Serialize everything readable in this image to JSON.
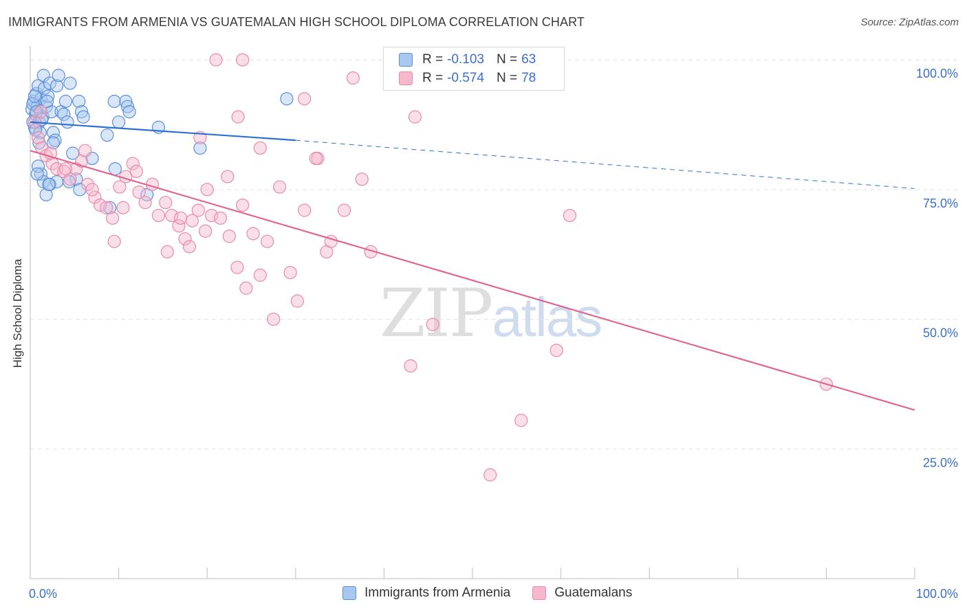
{
  "title": "IMMIGRANTS FROM ARMENIA VS GUATEMALAN HIGH SCHOOL DIPLOMA CORRELATION CHART",
  "source": "Source: ZipAtlas.com",
  "watermark": {
    "zip": "ZIP",
    "atlas": "atlas"
  },
  "legend": {
    "r_label": "R =",
    "n_label": "N =",
    "series": [
      {
        "r": "-0.103",
        "n": "63"
      },
      {
        "r": "-0.574",
        "n": "78"
      }
    ]
  },
  "colors": {
    "blue_fill": "#a9c8f0",
    "blue_stroke": "#5b8fd6",
    "blue_line": "#2f6fd0",
    "pink_fill": "#f6b8cb",
    "pink_stroke": "#e88aa8",
    "pink_line": "#e06690",
    "grid": "#e3e3e3",
    "tick_label": "#3a6fcc"
  },
  "chart_data": {
    "type": "scatter",
    "xlabel": "",
    "ylabel": "High School Diploma",
    "xlim": [
      0,
      100
    ],
    "ylim": [
      0,
      102
    ],
    "x_tick_labels": [
      "0.0%",
      "100.0%"
    ],
    "y_ticks": [
      25,
      50,
      75,
      100
    ],
    "y_tick_labels": [
      "25.0%",
      "50.0%",
      "75.0%",
      "100.0%"
    ],
    "series": [
      {
        "name": "Immigrants from Armenia",
        "trend": {
          "x0": 0,
          "y0": 88.0,
          "x1": 30,
          "y1": 84.5,
          "extend_to_x": 100,
          "extend_y": 75.2
        },
        "points": [
          [
            0.2,
            90.5
          ],
          [
            0.3,
            88.0
          ],
          [
            0.4,
            92.0
          ],
          [
            0.5,
            87.0
          ],
          [
            0.6,
            89.5
          ],
          [
            0.7,
            93.5
          ],
          [
            0.8,
            91.0
          ],
          [
            0.9,
            95.0
          ],
          [
            1.0,
            88.0
          ],
          [
            1.1,
            86.0
          ],
          [
            1.2,
            92.5
          ],
          [
            1.4,
            89.0
          ],
          [
            1.5,
            97.0
          ],
          [
            1.6,
            94.5
          ],
          [
            1.8,
            91.0
          ],
          [
            2.0,
            93.0
          ],
          [
            2.2,
            95.5
          ],
          [
            2.4,
            90.0
          ],
          [
            2.6,
            86.0
          ],
          [
            2.8,
            84.5
          ],
          [
            3.0,
            95.0
          ],
          [
            3.2,
            97.0
          ],
          [
            1.0,
            84.0
          ],
          [
            1.2,
            78.0
          ],
          [
            1.5,
            76.5
          ],
          [
            1.8,
            74.0
          ],
          [
            2.2,
            76.0
          ],
          [
            0.9,
            79.5
          ],
          [
            0.8,
            78.0
          ],
          [
            3.5,
            90.0
          ],
          [
            3.8,
            89.5
          ],
          [
            4.0,
            92.0
          ],
          [
            4.2,
            88.0
          ],
          [
            4.5,
            95.5
          ],
          [
            4.8,
            82.0
          ],
          [
            5.2,
            77.0
          ],
          [
            5.6,
            75.0
          ],
          [
            5.5,
            92.0
          ],
          [
            5.8,
            90.0
          ],
          [
            6.0,
            89.0
          ],
          [
            7.0,
            81.0
          ],
          [
            8.7,
            85.5
          ],
          [
            9.0,
            71.5
          ],
          [
            9.5,
            92.0
          ],
          [
            9.6,
            79.0
          ],
          [
            10.0,
            88.0
          ],
          [
            10.8,
            92.0
          ],
          [
            11.0,
            91.0
          ],
          [
            11.2,
            90.0
          ],
          [
            13.2,
            74.0
          ],
          [
            14.5,
            87.0
          ],
          [
            19.2,
            83.0
          ],
          [
            29.0,
            92.5
          ],
          [
            0.3,
            91.5
          ],
          [
            0.5,
            93.0
          ],
          [
            0.7,
            90.0
          ],
          [
            1.3,
            88.5
          ],
          [
            2.6,
            84.0
          ],
          [
            3.0,
            76.5
          ],
          [
            1.9,
            92.0
          ],
          [
            0.6,
            86.5
          ],
          [
            4.4,
            76.5
          ],
          [
            2.1,
            76.0
          ]
        ]
      },
      {
        "name": "Guatemalans",
        "trend": {
          "x0": 0,
          "y0": 82.5,
          "x1": 100,
          "y1": 32.5
        },
        "points": [
          [
            21.0,
            100.0
          ],
          [
            24.0,
            100.0
          ],
          [
            36.5,
            96.5
          ],
          [
            31.0,
            92.5
          ],
          [
            43.5,
            89.0
          ],
          [
            23.5,
            89.0
          ],
          [
            26.0,
            83.0
          ],
          [
            19.2,
            85.0
          ],
          [
            32.5,
            81.0
          ],
          [
            37.5,
            77.0
          ],
          [
            31.0,
            71.0
          ],
          [
            35.5,
            71.0
          ],
          [
            33.5,
            63.0
          ],
          [
            38.5,
            63.0
          ],
          [
            61.0,
            70.0
          ],
          [
            45.5,
            49.0
          ],
          [
            59.5,
            44.0
          ],
          [
            43.0,
            41.0
          ],
          [
            55.5,
            30.5
          ],
          [
            52.0,
            20.0
          ],
          [
            90.0,
            37.5
          ],
          [
            0.5,
            88.0
          ],
          [
            0.9,
            85.0
          ],
          [
            1.3,
            83.0
          ],
          [
            1.8,
            81.5
          ],
          [
            2.5,
            80.0
          ],
          [
            3.0,
            79.0
          ],
          [
            3.8,
            78.5
          ],
          [
            4.5,
            77.0
          ],
          [
            5.2,
            79.0
          ],
          [
            5.8,
            80.5
          ],
          [
            6.5,
            76.0
          ],
          [
            7.3,
            73.5
          ],
          [
            7.9,
            72.0
          ],
          [
            8.6,
            71.5
          ],
          [
            9.3,
            69.5
          ],
          [
            10.1,
            75.5
          ],
          [
            10.8,
            77.5
          ],
          [
            11.6,
            80.0
          ],
          [
            12.3,
            74.5
          ],
          [
            13.0,
            72.5
          ],
          [
            13.8,
            76.0
          ],
          [
            14.5,
            70.0
          ],
          [
            15.3,
            72.5
          ],
          [
            16.0,
            70.0
          ],
          [
            16.8,
            68.0
          ],
          [
            17.5,
            65.5
          ],
          [
            18.3,
            69.0
          ],
          [
            19.0,
            71.0
          ],
          [
            19.8,
            67.0
          ],
          [
            20.5,
            70.0
          ],
          [
            21.5,
            69.5
          ],
          [
            22.3,
            77.5
          ],
          [
            22.5,
            66.0
          ],
          [
            23.4,
            60.0
          ],
          [
            24.4,
            56.0
          ],
          [
            25.2,
            66.5
          ],
          [
            26.0,
            58.5
          ],
          [
            26.8,
            65.0
          ],
          [
            27.5,
            50.0
          ],
          [
            28.2,
            75.5
          ],
          [
            29.4,
            59.0
          ],
          [
            30.2,
            53.5
          ],
          [
            32.3,
            81.0
          ],
          [
            34.0,
            65.0
          ],
          [
            6.2,
            82.5
          ],
          [
            9.5,
            65.0
          ],
          [
            12.0,
            78.5
          ],
          [
            15.5,
            63.0
          ],
          [
            18.0,
            64.0
          ],
          [
            4.0,
            79.0
          ],
          [
            2.3,
            82.0
          ],
          [
            7.0,
            75.0
          ],
          [
            10.5,
            71.5
          ],
          [
            20.0,
            75.0
          ],
          [
            24.0,
            72.0
          ],
          [
            1.2,
            90.0
          ],
          [
            17.0,
            69.5
          ]
        ]
      }
    ],
    "legend_position": "top-center"
  }
}
